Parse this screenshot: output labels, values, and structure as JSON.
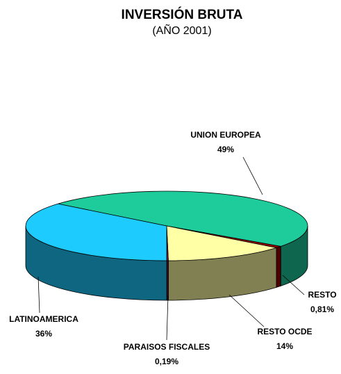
{
  "chart_data": {
    "type": "pie3d",
    "title": "INVERSIÓN BRUTA",
    "subtitle": "(AÑO 2001)",
    "categories": [
      "UNION EUROPEA",
      "RESTO",
      "RESTO OCDE",
      "PARAISOS FISCALES",
      "LATINOAMERICA"
    ],
    "values": [
      49,
      0.81,
      14,
      0.19,
      36
    ],
    "value_labels": [
      "49%",
      "0,81%",
      "14%",
      "0,19%",
      "36%"
    ],
    "colors": [
      "#1ecb9b",
      "#990000",
      "#ffffa6",
      "#7a1a4a",
      "#1ecbff"
    ]
  }
}
